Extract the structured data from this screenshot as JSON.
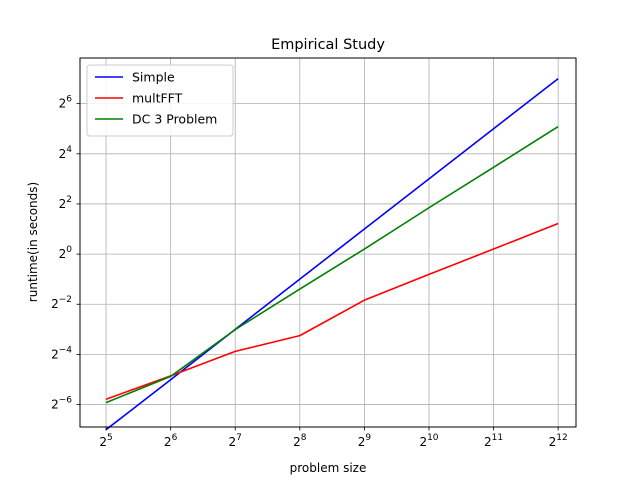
{
  "chart_data": {
    "type": "line",
    "title": "Empirical Study",
    "xlabel": "problem size",
    "ylabel": "runtime(in seconds)",
    "xscale": "log2",
    "yscale": "log2",
    "xlim": [
      24.2,
      4960
    ],
    "ylim": [
      0.0084,
      226
    ],
    "grid": true,
    "legend_position": "top-left",
    "x_ticks": [
      {
        "value": 32,
        "label": "2",
        "exp": "5"
      },
      {
        "value": 64,
        "label": "2",
        "exp": "6"
      },
      {
        "value": 128,
        "label": "2",
        "exp": "7"
      },
      {
        "value": 256,
        "label": "2",
        "exp": "8"
      },
      {
        "value": 512,
        "label": "2",
        "exp": "9"
      },
      {
        "value": 1024,
        "label": "2",
        "exp": "10"
      },
      {
        "value": 2048,
        "label": "2",
        "exp": "11"
      },
      {
        "value": 4096,
        "label": "2",
        "exp": "12"
      }
    ],
    "y_ticks": [
      {
        "value": 0.015625,
        "label": "2",
        "exp": "−6"
      },
      {
        "value": 0.0625,
        "label": "2",
        "exp": "−4"
      },
      {
        "value": 0.25,
        "label": "2",
        "exp": "−2"
      },
      {
        "value": 1,
        "label": "2",
        "exp": "0"
      },
      {
        "value": 4,
        "label": "2",
        "exp": "2"
      },
      {
        "value": 16,
        "label": "2",
        "exp": "4"
      },
      {
        "value": 64,
        "label": "2",
        "exp": "6"
      }
    ],
    "x": [
      32,
      64,
      128,
      256,
      512,
      1024,
      2048,
      4096
    ],
    "series": [
      {
        "name": "Simple",
        "color": "#0000ff",
        "values": [
          0.0078,
          0.031,
          0.125,
          0.5,
          2.0,
          8.0,
          32.0,
          128.0
        ]
      },
      {
        "name": "multFFT",
        "color": "#ff0000",
        "values": [
          0.0181,
          0.0345,
          0.068,
          0.105,
          0.28,
          0.57,
          1.15,
          2.33
        ]
      },
      {
        "name": "DC 3 Problem",
        "color": "#008000",
        "values": [
          0.0165,
          0.034,
          0.124,
          0.38,
          1.15,
          3.6,
          11.0,
          34.0
        ]
      }
    ]
  }
}
